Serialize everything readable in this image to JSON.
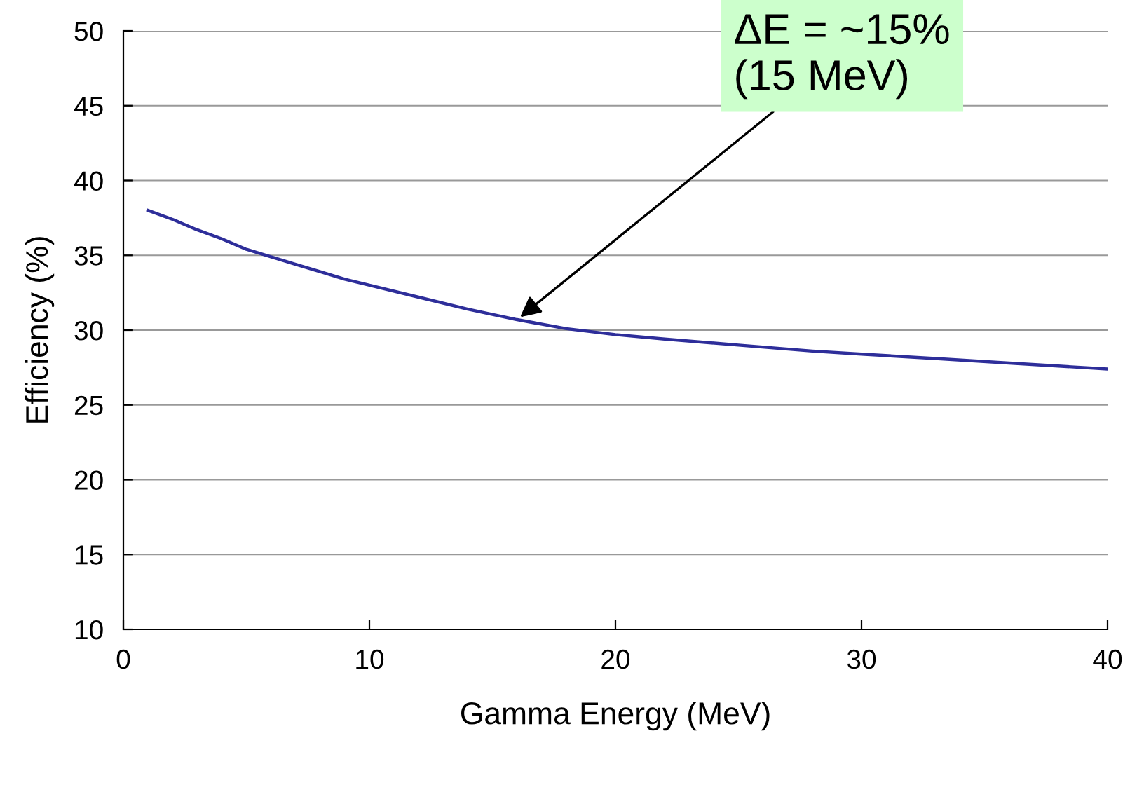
{
  "chart_data": {
    "type": "line",
    "xlabel": "Gamma Energy (MeV)",
    "ylabel": "Efficiency (%)",
    "x": [
      1,
      2,
      3,
      4,
      5,
      6,
      7,
      8,
      9,
      10,
      12,
      14,
      16,
      18,
      20,
      22,
      25,
      28,
      30,
      33,
      36,
      38,
      40
    ],
    "series": [
      {
        "color": "#2e2e9a",
        "values": [
          38.0,
          37.4,
          36.7,
          36.1,
          35.4,
          34.9,
          34.4,
          33.9,
          33.4,
          33.0,
          32.2,
          31.4,
          30.7,
          30.1,
          29.7,
          29.4,
          29.0,
          28.6,
          28.4,
          28.1,
          27.8,
          27.6,
          27.4
        ]
      }
    ],
    "xlim": [
      0,
      40
    ],
    "ylim": [
      10,
      50
    ],
    "xticks": [
      0,
      10,
      20,
      30,
      40
    ],
    "yticks": [
      10,
      15,
      20,
      25,
      30,
      35,
      40,
      45,
      50
    ],
    "grid": "y",
    "annotations": [
      {
        "text": "ΔE = ~15%\n(15 MeV)",
        "x": 16,
        "y": 30.7
      }
    ]
  }
}
